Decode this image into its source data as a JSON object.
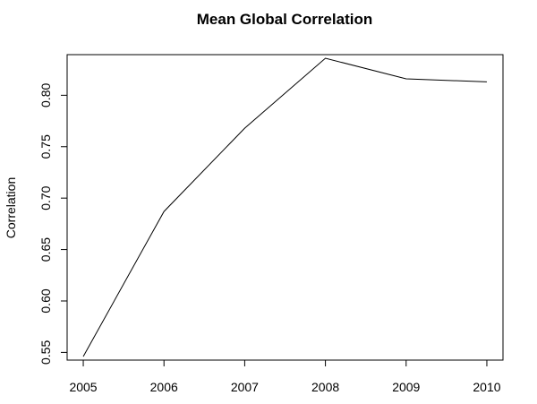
{
  "chart_data": {
    "type": "line",
    "title": "Mean Global Correlation",
    "xlabel": "",
    "ylabel": "Correlation",
    "x": [
      2005,
      2006,
      2007,
      2008,
      2009,
      2010
    ],
    "series": [
      {
        "values": [
          0.546,
          0.687,
          0.768,
          0.836,
          0.816,
          0.813
        ]
      }
    ],
    "xticks": [
      "2005",
      "2006",
      "2007",
      "2008",
      "2009",
      "2010"
    ],
    "yticks": [
      "0.55",
      "0.60",
      "0.65",
      "0.70",
      "0.75",
      "0.80"
    ],
    "ytick_values": [
      0.55,
      0.6,
      0.65,
      0.7,
      0.75,
      0.8
    ],
    "xlim": [
      2004.8,
      2010.2
    ],
    "ylim": [
      0.5425,
      0.8395
    ],
    "grid": false,
    "legend": "none",
    "line_color": "#000000"
  }
}
